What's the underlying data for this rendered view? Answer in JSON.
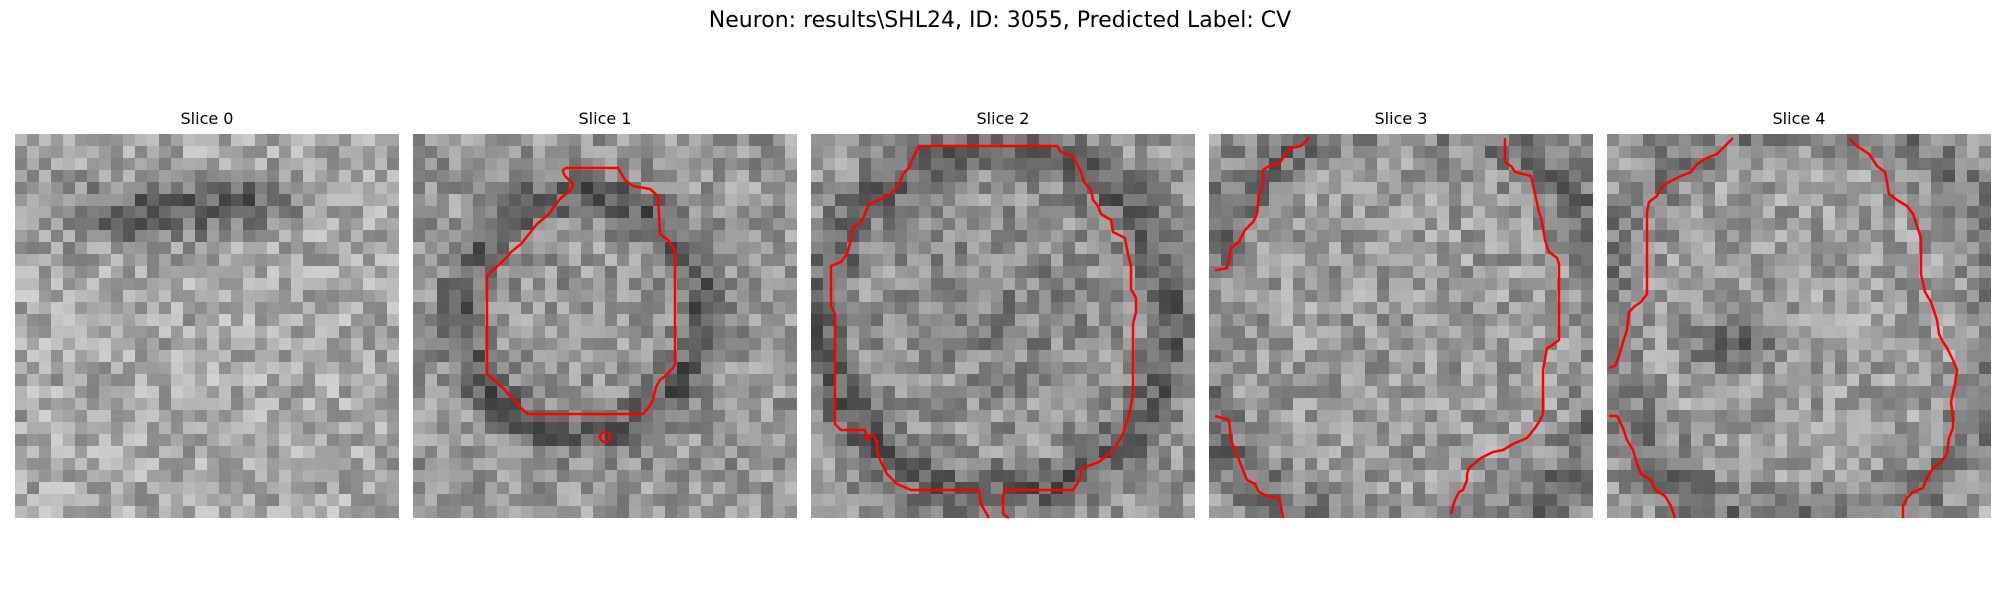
{
  "figure": {
    "title": "Neuron: results\\SHL24, ID: 3055, Predicted Label: CV",
    "contour_color": "#ff0000"
  },
  "slices": [
    {
      "title": "Slice 0",
      "has_contour": false
    },
    {
      "title": "Slice 1",
      "has_contour": true,
      "marker": true
    },
    {
      "title": "Slice 2",
      "has_contour": true
    },
    {
      "title": "Slice 3",
      "has_contour": true
    },
    {
      "title": "Slice 4",
      "has_contour": true
    }
  ]
}
